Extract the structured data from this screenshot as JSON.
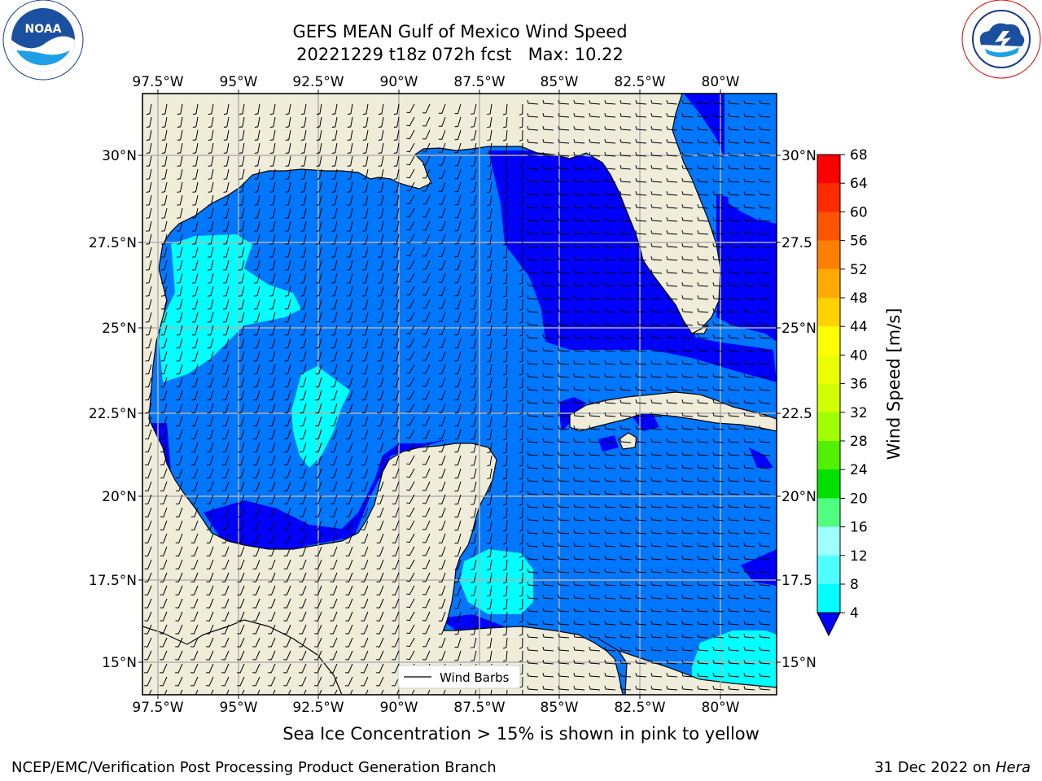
{
  "title": {
    "line1": "GEFS MEAN Gulf of Mexico Wind Speed",
    "line2": "20221229 t18z 072h fcst   Max: 10.22"
  },
  "logos": {
    "left": {
      "icon": "noaa-logo",
      "text": "NOAA",
      "ring_text": "NATIONAL OCEANIC AND ATMOSPHERIC ADMINISTRATION · U.S. DEPARTMENT OF COMMERCE"
    },
    "right": {
      "icon": "nws-logo",
      "ring_text": "NATIONAL WEATHER SERVICE"
    }
  },
  "map": {
    "lon_ticks": [
      "97.5°W",
      "95°W",
      "92.5°W",
      "90°W",
      "87.5°W",
      "85°W",
      "82.5°W",
      "80°W"
    ],
    "lat_ticks_left": [
      "30°N",
      "27.5°N",
      "25°N",
      "22.5°N",
      "20°N",
      "17.5°N",
      "15°N"
    ],
    "lat_ticks_right": [
      "30°N",
      "27.5",
      "25°N",
      "22.5",
      "20°N",
      "17.5",
      "15°N"
    ],
    "legend_label": "Wind Barbs",
    "colors": {
      "land": "#efedda",
      "band_4_8": "#0077ff",
      "band_below_4": "#0000ff",
      "band_8_12": "#00ffff",
      "band_12_16": "#44ffff",
      "grid": "#b0b0b0"
    }
  },
  "colorbar": {
    "label": "Wind Speed [m/s]",
    "ticks": [
      "68",
      "64",
      "60",
      "56",
      "52",
      "48",
      "44",
      "40",
      "36",
      "32",
      "28",
      "24",
      "20",
      "16",
      "12",
      "8",
      "4"
    ],
    "colors": [
      "#ff0000",
      "#ff2a00",
      "#ff5500",
      "#ff7f00",
      "#ffaa00",
      "#ffd200",
      "#ffff00",
      "#eaff00",
      "#d0ff00",
      "#a0ff00",
      "#50f000",
      "#00e000",
      "#50ff80",
      "#a0ffff",
      "#50ffff",
      "#00ffff",
      "#0077ff"
    ]
  },
  "caption": "Sea Ice Concentration > 15% is shown in pink to yellow",
  "footer": {
    "left": "NCEP/EMC/Verification Post Processing Product Generation Branch",
    "right_date": "31 Dec 2022 on ",
    "right_host": "Hera"
  }
}
